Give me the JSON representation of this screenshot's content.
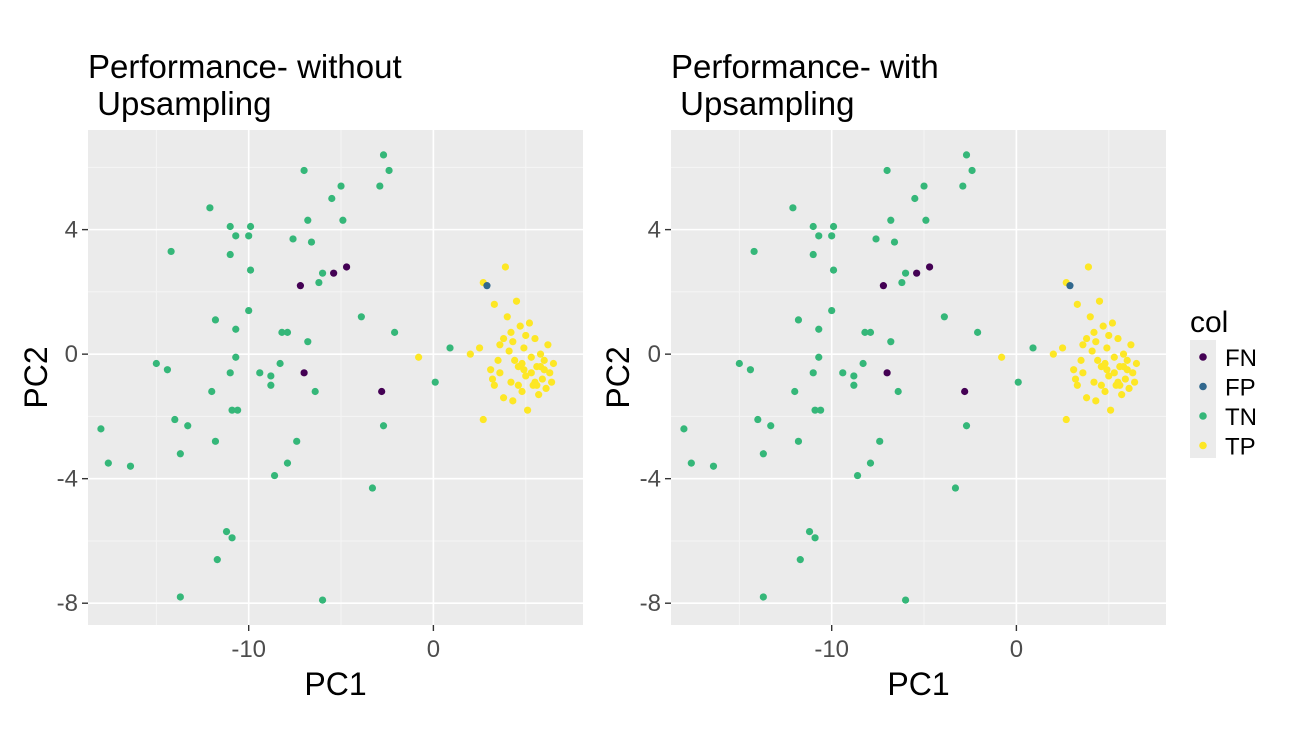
{
  "legend": {
    "title": "col",
    "entries": [
      {
        "label": "FN",
        "color": "#440154"
      },
      {
        "label": "FP",
        "color": "#31688E"
      },
      {
        "label": "TN",
        "color": "#35B779"
      },
      {
        "label": "TP",
        "color": "#FDE725"
      }
    ]
  },
  "chart_data": [
    {
      "type": "scatter",
      "title_lines": [
        "Performance- without",
        " Upsampling"
      ],
      "xlabel": "PC1",
      "ylabel": "PC2",
      "xlim": [
        -18.7,
        8.1
      ],
      "ylim": [
        -8.7,
        7.2
      ],
      "xticks": [
        -10,
        0
      ],
      "yticks": [
        -8,
        -4,
        0,
        4
      ],
      "grid": true,
      "tick_labels_x": [
        "-10",
        "0"
      ],
      "tick_labels_y": [
        "-8",
        "-4",
        "0",
        "4"
      ],
      "points": {
        "TN": [
          [
            -18.0,
            -2.4
          ],
          [
            -17.6,
            -3.5
          ],
          [
            -16.4,
            -3.6
          ],
          [
            -15.0,
            -0.3
          ],
          [
            -14.4,
            -0.5
          ],
          [
            -14.2,
            3.3
          ],
          [
            -14.0,
            -2.1
          ],
          [
            -13.7,
            -3.2
          ],
          [
            -13.7,
            -7.8
          ],
          [
            -13.3,
            -2.3
          ],
          [
            -12.1,
            4.7
          ],
          [
            -12.0,
            -1.2
          ],
          [
            -11.8,
            1.1
          ],
          [
            -11.8,
            -2.8
          ],
          [
            -11.7,
            -6.6
          ],
          [
            -11.2,
            -5.7
          ],
          [
            -11.0,
            4.1
          ],
          [
            -11.0,
            3.2
          ],
          [
            -11.0,
            -0.6
          ],
          [
            -10.9,
            -1.8
          ],
          [
            -10.9,
            -5.9
          ],
          [
            -10.7,
            3.8
          ],
          [
            -10.7,
            0.8
          ],
          [
            -10.7,
            -0.1
          ],
          [
            -10.6,
            -1.8
          ],
          [
            -10.0,
            1.4
          ],
          [
            -10.0,
            3.8
          ],
          [
            -9.9,
            2.7
          ],
          [
            -9.9,
            4.1
          ],
          [
            -9.4,
            -0.6
          ],
          [
            -8.8,
            -0.7
          ],
          [
            -8.8,
            -1.0
          ],
          [
            -8.6,
            -3.9
          ],
          [
            -8.3,
            -0.3
          ],
          [
            -8.2,
            0.7
          ],
          [
            -7.9,
            0.7
          ],
          [
            -7.9,
            -3.5
          ],
          [
            -7.6,
            3.7
          ],
          [
            -7.4,
            -2.8
          ],
          [
            -7.0,
            5.9
          ],
          [
            -6.8,
            4.3
          ],
          [
            -6.8,
            0.4
          ],
          [
            -6.6,
            3.6
          ],
          [
            -6.4,
            -1.2
          ],
          [
            -6.2,
            2.3
          ],
          [
            -6.0,
            2.6
          ],
          [
            -6.0,
            -7.9
          ],
          [
            -5.5,
            5.0
          ],
          [
            -5.0,
            5.4
          ],
          [
            -4.9,
            4.3
          ],
          [
            -3.9,
            1.2
          ],
          [
            -3.3,
            -4.3
          ],
          [
            -2.9,
            5.4
          ],
          [
            -2.7,
            6.4
          ],
          [
            -2.7,
            -2.3
          ],
          [
            -2.4,
            5.9
          ],
          [
            -2.1,
            0.7
          ],
          [
            0.1,
            -0.9
          ],
          [
            0.9,
            0.2
          ]
        ],
        "FN": [
          [
            -7.2,
            2.2
          ],
          [
            -7.0,
            -0.6
          ],
          [
            -5.4,
            2.6
          ],
          [
            -4.7,
            2.8
          ],
          [
            -2.8,
            -1.2
          ]
        ],
        "FP": [
          [
            2.9,
            2.2
          ]
        ],
        "TP": [
          [
            -0.8,
            -0.1
          ],
          [
            2.0,
            0.0
          ],
          [
            2.5,
            0.2
          ],
          [
            2.7,
            -2.1
          ],
          [
            2.7,
            2.3
          ],
          [
            3.1,
            -0.5
          ],
          [
            3.2,
            -0.8
          ],
          [
            3.3,
            -1.0
          ],
          [
            3.3,
            1.6
          ],
          [
            3.5,
            -0.2
          ],
          [
            3.6,
            -0.6
          ],
          [
            3.8,
            0.5
          ],
          [
            3.8,
            -1.4
          ],
          [
            3.9,
            2.8
          ],
          [
            4.0,
            1.2
          ],
          [
            4.1,
            0.1
          ],
          [
            4.2,
            -0.9
          ],
          [
            4.3,
            -1.5
          ],
          [
            4.3,
            0.4
          ],
          [
            4.5,
            1.7
          ],
          [
            4.6,
            -0.4
          ],
          [
            4.7,
            0.9
          ],
          [
            4.8,
            -1.2
          ],
          [
            4.9,
            0.2
          ],
          [
            5.0,
            -0.7
          ],
          [
            5.1,
            -1.8
          ],
          [
            5.2,
            1.0
          ],
          [
            5.3,
            -0.1
          ],
          [
            5.4,
            -1.0
          ],
          [
            5.5,
            0.5
          ],
          [
            5.6,
            -0.4
          ],
          [
            5.7,
            -1.3
          ],
          [
            5.8,
            0.0
          ],
          [
            5.9,
            -0.8
          ],
          [
            6.0,
            -0.2
          ],
          [
            6.1,
            -1.1
          ],
          [
            6.2,
            0.3
          ],
          [
            6.3,
            -0.6
          ],
          [
            6.4,
            -0.9
          ],
          [
            6.5,
            -0.3
          ],
          [
            4.4,
            -0.2
          ],
          [
            4.9,
            -0.5
          ],
          [
            5.3,
            -0.6
          ],
          [
            5.5,
            -0.9
          ],
          [
            4.6,
            -1.0
          ],
          [
            5.8,
            -0.4
          ],
          [
            4.2,
            0.7
          ],
          [
            5.0,
            0.6
          ],
          [
            6.0,
            -0.5
          ],
          [
            3.6,
            0.3
          ],
          [
            4.8,
            -0.3
          ],
          [
            5.6,
            -1.0
          ]
        ]
      }
    },
    {
      "type": "scatter",
      "title_lines": [
        "Performance- with",
        " Upsampling"
      ],
      "xlabel": "PC1",
      "ylabel": "PC2",
      "xlim": [
        -18.7,
        8.1
      ],
      "ylim": [
        -8.7,
        7.2
      ],
      "xticks": [
        -10,
        0
      ],
      "yticks": [
        -8,
        -4,
        0,
        4
      ],
      "grid": true,
      "tick_labels_x": [
        "-10",
        "0"
      ],
      "tick_labels_y": [
        "-8",
        "-4",
        "0",
        "4"
      ],
      "points": {
        "TN": [
          [
            -18.0,
            -2.4
          ],
          [
            -17.6,
            -3.5
          ],
          [
            -16.4,
            -3.6
          ],
          [
            -15.0,
            -0.3
          ],
          [
            -14.4,
            -0.5
          ],
          [
            -14.2,
            3.3
          ],
          [
            -14.0,
            -2.1
          ],
          [
            -13.7,
            -3.2
          ],
          [
            -13.7,
            -7.8
          ],
          [
            -13.3,
            -2.3
          ],
          [
            -12.1,
            4.7
          ],
          [
            -12.0,
            -1.2
          ],
          [
            -11.8,
            1.1
          ],
          [
            -11.8,
            -2.8
          ],
          [
            -11.7,
            -6.6
          ],
          [
            -11.2,
            -5.7
          ],
          [
            -11.0,
            4.1
          ],
          [
            -11.0,
            3.2
          ],
          [
            -11.0,
            -0.6
          ],
          [
            -10.9,
            -1.8
          ],
          [
            -10.9,
            -5.9
          ],
          [
            -10.7,
            3.8
          ],
          [
            -10.7,
            0.8
          ],
          [
            -10.7,
            -0.1
          ],
          [
            -10.6,
            -1.8
          ],
          [
            -10.0,
            1.4
          ],
          [
            -10.0,
            3.8
          ],
          [
            -9.9,
            2.7
          ],
          [
            -9.9,
            4.1
          ],
          [
            -9.4,
            -0.6
          ],
          [
            -8.8,
            -0.7
          ],
          [
            -8.8,
            -1.0
          ],
          [
            -8.6,
            -3.9
          ],
          [
            -8.3,
            -0.3
          ],
          [
            -8.2,
            0.7
          ],
          [
            -7.9,
            0.7
          ],
          [
            -7.9,
            -3.5
          ],
          [
            -7.6,
            3.7
          ],
          [
            -7.4,
            -2.8
          ],
          [
            -7.0,
            5.9
          ],
          [
            -6.8,
            4.3
          ],
          [
            -6.8,
            0.4
          ],
          [
            -6.6,
            3.6
          ],
          [
            -6.4,
            -1.2
          ],
          [
            -6.2,
            2.3
          ],
          [
            -6.0,
            2.6
          ],
          [
            -6.0,
            -7.9
          ],
          [
            -5.5,
            5.0
          ],
          [
            -5.0,
            5.4
          ],
          [
            -4.9,
            4.3
          ],
          [
            -3.9,
            1.2
          ],
          [
            -3.3,
            -4.3
          ],
          [
            -2.9,
            5.4
          ],
          [
            -2.7,
            6.4
          ],
          [
            -2.7,
            -2.3
          ],
          [
            -2.4,
            5.9
          ],
          [
            -2.1,
            0.7
          ],
          [
            0.1,
            -0.9
          ],
          [
            0.9,
            0.2
          ]
        ],
        "FN": [
          [
            -7.2,
            2.2
          ],
          [
            -7.0,
            -0.6
          ],
          [
            -5.4,
            2.6
          ],
          [
            -4.7,
            2.8
          ],
          [
            -2.8,
            -1.2
          ]
        ],
        "FP": [
          [
            2.9,
            2.2
          ]
        ],
        "TP": [
          [
            -0.8,
            -0.1
          ],
          [
            2.0,
            0.0
          ],
          [
            2.5,
            0.2
          ],
          [
            2.7,
            -2.1
          ],
          [
            2.7,
            2.3
          ],
          [
            3.1,
            -0.5
          ],
          [
            3.2,
            -0.8
          ],
          [
            3.3,
            -1.0
          ],
          [
            3.3,
            1.6
          ],
          [
            3.5,
            -0.2
          ],
          [
            3.6,
            -0.6
          ],
          [
            3.8,
            0.5
          ],
          [
            3.8,
            -1.4
          ],
          [
            3.9,
            2.8
          ],
          [
            4.0,
            1.2
          ],
          [
            4.1,
            0.1
          ],
          [
            4.2,
            -0.9
          ],
          [
            4.3,
            -1.5
          ],
          [
            4.3,
            0.4
          ],
          [
            4.5,
            1.7
          ],
          [
            4.6,
            -0.4
          ],
          [
            4.7,
            0.9
          ],
          [
            4.8,
            -1.2
          ],
          [
            4.9,
            0.2
          ],
          [
            5.0,
            -0.7
          ],
          [
            5.1,
            -1.8
          ],
          [
            5.2,
            1.0
          ],
          [
            5.3,
            -0.1
          ],
          [
            5.4,
            -1.0
          ],
          [
            5.5,
            0.5
          ],
          [
            5.6,
            -0.4
          ],
          [
            5.7,
            -1.3
          ],
          [
            5.8,
            0.0
          ],
          [
            5.9,
            -0.8
          ],
          [
            6.0,
            -0.2
          ],
          [
            6.1,
            -1.1
          ],
          [
            6.2,
            0.3
          ],
          [
            6.3,
            -0.6
          ],
          [
            6.4,
            -0.9
          ],
          [
            6.5,
            -0.3
          ],
          [
            4.4,
            -0.2
          ],
          [
            4.9,
            -0.5
          ],
          [
            5.3,
            -0.6
          ],
          [
            5.5,
            -0.9
          ],
          [
            4.6,
            -1.0
          ],
          [
            5.8,
            -0.4
          ],
          [
            4.2,
            0.7
          ],
          [
            5.0,
            0.6
          ],
          [
            6.0,
            -0.5
          ],
          [
            3.6,
            0.3
          ],
          [
            4.8,
            -0.3
          ],
          [
            5.6,
            -1.0
          ]
        ]
      }
    }
  ]
}
